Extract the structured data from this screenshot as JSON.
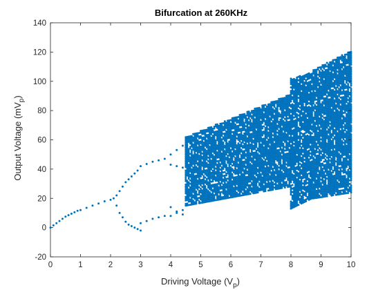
{
  "chart_data": {
    "type": "scatter",
    "title": "Bifurcation at 260KHz",
    "xlabel": "Driving Voltage (V",
    "xlabel_sub": "p",
    "xlabel_end": ")",
    "ylabel": "Output Voltage (mV",
    "ylabel_sub": "p",
    "ylabel_end": ")",
    "xlim": [
      0,
      10
    ],
    "ylim": [
      -20,
      140
    ],
    "x_ticks": [
      0,
      1,
      2,
      3,
      4,
      5,
      6,
      7,
      8,
      9,
      10
    ],
    "y_ticks": [
      -20,
      0,
      20,
      40,
      60,
      80,
      100,
      120,
      140
    ],
    "grid": false,
    "legend": "none",
    "marker_color": "#0072BD",
    "series": [
      {
        "x": [
          0.0,
          0.1,
          0.2,
          0.3,
          0.4,
          0.5,
          0.6,
          0.7,
          0.8,
          0.9,
          1.0,
          1.2,
          1.4,
          1.6,
          1.8,
          2.0,
          2.1,
          2.2,
          2.3,
          2.4,
          2.5,
          2.6,
          2.7,
          2.8,
          2.9,
          3.0,
          2.2,
          2.3,
          2.4,
          2.5,
          2.6,
          2.7,
          2.8,
          2.9,
          3.0,
          3.2,
          3.4,
          3.6,
          3.8,
          3.0,
          3.2,
          3.4,
          3.6,
          3.8,
          4.0,
          4.2,
          4.4,
          4.0,
          4.2,
          4.4,
          4.0,
          4.2,
          4.4,
          4.0,
          4.2,
          4.4
        ],
        "y": [
          0,
          1.5,
          3,
          4.5,
          6,
          7.5,
          8.5,
          9.5,
          10.5,
          11.5,
          12,
          13.5,
          15,
          16.5,
          18,
          19,
          20,
          15,
          10,
          7,
          4,
          2,
          1,
          0,
          -1,
          -2,
          22,
          25,
          28,
          31,
          33,
          35,
          37,
          39,
          42,
          43.5,
          45,
          46,
          47,
          3,
          4.5,
          6,
          7,
          8,
          50,
          53,
          56,
          43,
          42,
          41,
          14,
          11,
          9,
          8,
          10,
          12
        ]
      }
    ],
    "bands": [
      {
        "x_start": 4.5,
        "x_end": 7.95,
        "y_low_start": 15,
        "y_low_end": 28,
        "y_high_start": 62,
        "y_high_end": 91
      },
      {
        "x_start": 8.0,
        "x_end": 8.7,
        "y_low_start": 13,
        "y_low_end": 20,
        "y_high_start": 102,
        "y_high_end": 106
      },
      {
        "x_start": 8.75,
        "x_end": 10.0,
        "y_low_start": 20,
        "y_low_end": 24,
        "y_high_start": 108,
        "y_high_end": 121
      }
    ]
  }
}
